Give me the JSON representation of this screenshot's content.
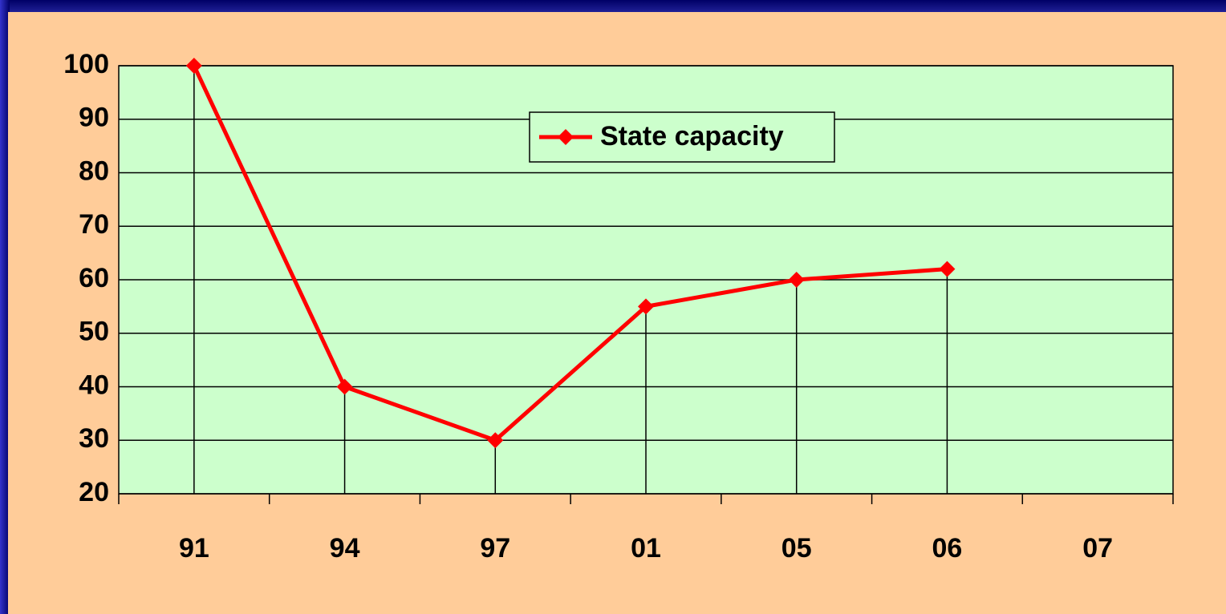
{
  "chart_data": {
    "type": "line",
    "categories": [
      "91",
      "94",
      "97",
      "01",
      "05",
      "06",
      "07"
    ],
    "series": [
      {
        "name": "State capacity",
        "color": "#ff0000",
        "values": [
          100,
          40,
          30,
          55,
          60,
          62,
          null
        ]
      }
    ],
    "ylim": [
      20,
      100
    ],
    "yticks": [
      20,
      30,
      40,
      50,
      60,
      70,
      80,
      90,
      100
    ],
    "grid": true,
    "drop_lines": true,
    "legend": "top-center"
  }
}
